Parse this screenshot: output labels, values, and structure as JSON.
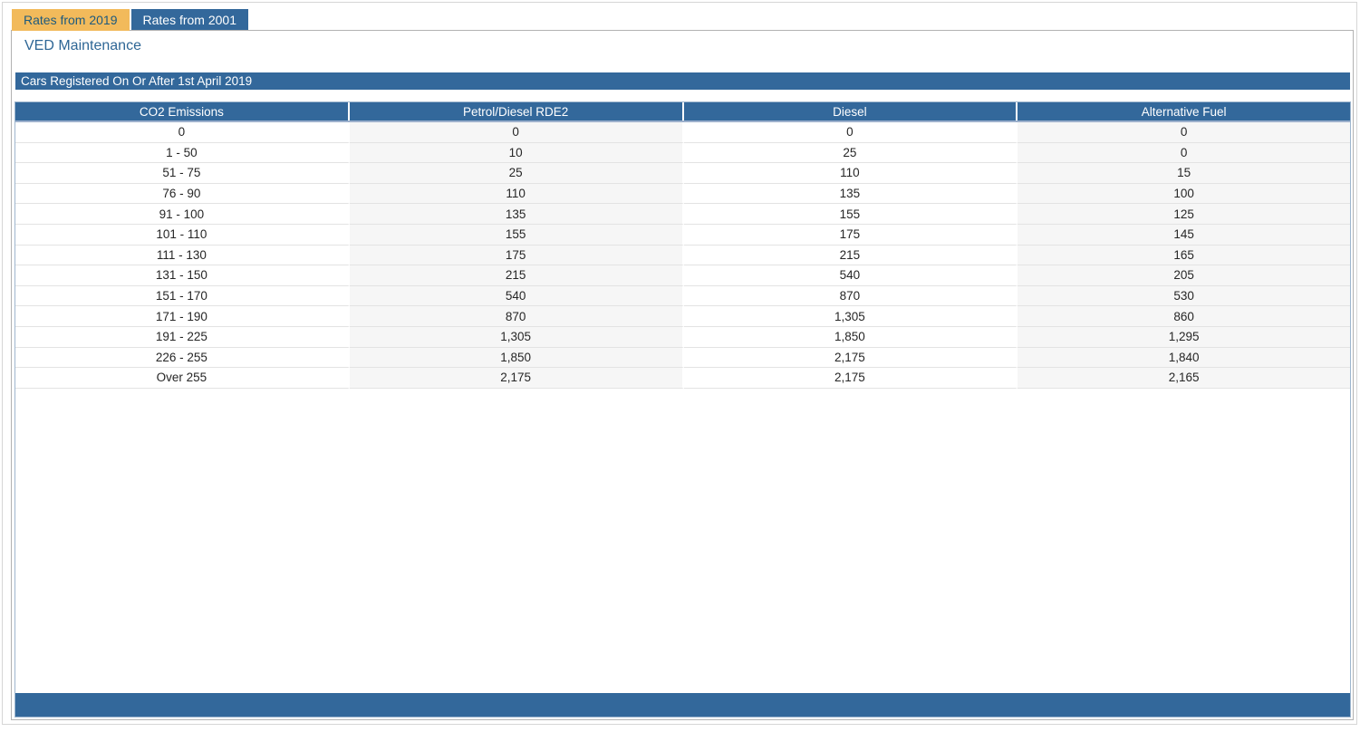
{
  "tabs": [
    {
      "label": "Rates from 2019",
      "active": true
    },
    {
      "label": "Rates from 2001",
      "active": false
    }
  ],
  "page_title": "VED Maintenance",
  "section_header": "Cars Registered On Or After 1st April 2019",
  "table": {
    "columns": [
      "CO2 Emissions",
      "Petrol/Diesel RDE2",
      "Diesel",
      "Alternative Fuel"
    ],
    "rows": [
      [
        "0",
        "0",
        "0",
        "0"
      ],
      [
        "1 - 50",
        "10",
        "25",
        "0"
      ],
      [
        "51 - 75",
        "25",
        "110",
        "15"
      ],
      [
        "76 - 90",
        "110",
        "135",
        "100"
      ],
      [
        "91 - 100",
        "135",
        "155",
        "125"
      ],
      [
        "101 - 110",
        "155",
        "175",
        "145"
      ],
      [
        "111 - 130",
        "175",
        "215",
        "165"
      ],
      [
        "131 - 150",
        "215",
        "540",
        "205"
      ],
      [
        "151 - 170",
        "540",
        "870",
        "530"
      ],
      [
        "171 - 190",
        "870",
        "1,305",
        "860"
      ],
      [
        "191 - 225",
        "1,305",
        "1,850",
        "1,295"
      ],
      [
        "226 - 255",
        "1,850",
        "2,175",
        "1,840"
      ],
      [
        "Over 255",
        "2,175",
        "2,175",
        "2,165"
      ]
    ]
  },
  "colors": {
    "steel_blue": "#33689B",
    "active_tab_bg": "#F2BA5B",
    "active_tab_text": "#1D5A7E",
    "title_text": "#2E6695",
    "grid_border": "#9EB6CE",
    "alt_column_bg": "#F6F6F6",
    "row_separator": "#E3E3E3",
    "panel_border": "#B2B2B2"
  }
}
